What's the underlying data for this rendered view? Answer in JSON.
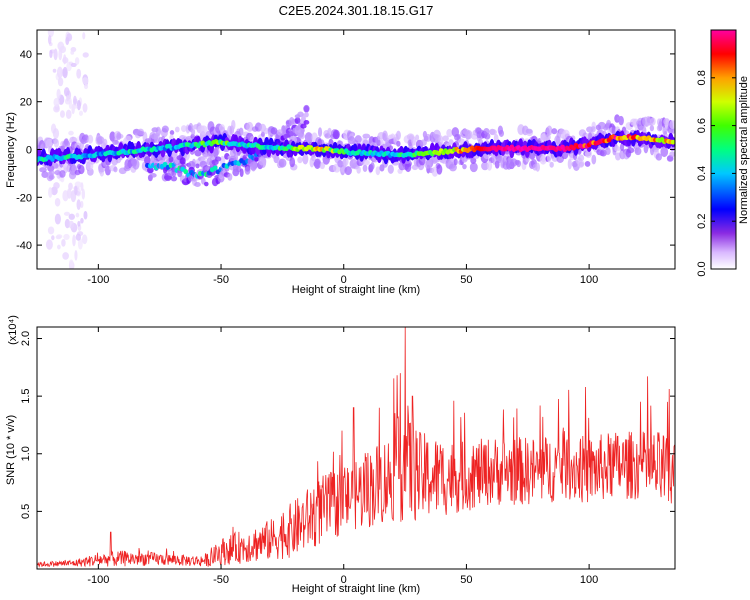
{
  "figure": {
    "title": "C2E5.2024.301.18.15.G17"
  },
  "colors": {
    "snr_line": "#ee2222",
    "axis": "#000000",
    "spectrogram_colormap": [
      "#ffffff",
      "#e9d6ff",
      "#b07cff",
      "#6a00ff",
      "#1a00ff",
      "#0066ff",
      "#00d0ff",
      "#00ff90",
      "#6aff00",
      "#d8ff00",
      "#ffd000",
      "#ff7a00",
      "#ff0000",
      "#ff0066",
      "#ff00cc"
    ]
  },
  "chart_data": [
    {
      "type": "heatmap",
      "name_key": "spectrogram",
      "xlabel": "Height of straight line (km)",
      "ylabel": "Frequency (Hz)",
      "xlim": [
        -125,
        135
      ],
      "ylim": [
        -50,
        50
      ],
      "xticks": [
        -100,
        -50,
        0,
        50,
        100
      ],
      "yticks": [
        -40,
        -20,
        0,
        20,
        40
      ],
      "colorbar": {
        "label": "Normalized spectral amplitude",
        "range": [
          0,
          1
        ],
        "ticks": [
          "0.0",
          "0.2",
          "0.4",
          "0.6",
          "0.8"
        ],
        "tick_values": [
          0,
          0.2,
          0.4,
          0.6,
          0.8
        ]
      },
      "ridge_main": {
        "x": [
          -125,
          -110,
          -100,
          -90,
          -80,
          -70,
          -60,
          -50,
          -40,
          -30,
          -20,
          -10,
          0,
          10,
          20,
          30,
          40,
          50,
          60,
          70,
          80,
          90,
          100,
          110,
          120,
          130,
          135
        ],
        "freq": [
          -4,
          -3,
          -2,
          -1,
          0,
          1,
          2,
          3,
          2,
          1,
          0.5,
          0.5,
          -1,
          -1.5,
          -2,
          -2,
          -1,
          0,
          0.5,
          0.5,
          0.5,
          0.5,
          2,
          5,
          5,
          4,
          3
        ],
        "amplitude": [
          0.45,
          0.45,
          0.4,
          0.45,
          0.45,
          0.4,
          0.5,
          0.55,
          0.45,
          0.45,
          0.6,
          0.7,
          0.5,
          0.45,
          0.45,
          0.5,
          0.55,
          0.75,
          0.95,
          0.97,
          0.96,
          0.95,
          0.8,
          0.85,
          0.75,
          0.7,
          0.65
        ]
      },
      "ridge_secondary": {
        "x": [
          -80,
          -70,
          -60,
          -50,
          -40,
          -30,
          -20,
          -15
        ],
        "freq": [
          -7,
          -7,
          -11,
          -8,
          -5,
          2,
          8,
          14
        ],
        "amplitude": [
          0.45,
          0.5,
          0.5,
          0.45,
          0.4,
          0.3,
          0.15,
          0.1
        ]
      },
      "noise_column": {
        "x_range": [
          -120,
          -105
        ],
        "freq_range": [
          -50,
          50
        ],
        "amplitude": 0.05
      }
    },
    {
      "type": "line",
      "name_key": "snr",
      "xlabel": "Height of straight line (km)",
      "ylabel": "SNR (10 * v/v)",
      "y_multiplier": "(x10⁴)",
      "xlim": [
        -125,
        135
      ],
      "ylim": [
        0,
        2.1
      ],
      "xticks": [
        -100,
        -50,
        0,
        50,
        100
      ],
      "yticks": [
        0.5,
        1.0,
        1.5,
        2.0
      ],
      "ytick_labels": [
        "0.5",
        "1.0",
        "1.5",
        "2.0"
      ],
      "envelope": {
        "x": [
          -125,
          -110,
          -100,
          -90,
          -80,
          -70,
          -60,
          -55,
          -50,
          -40,
          -30,
          -20,
          -10,
          0,
          10,
          20,
          25,
          30,
          40,
          50,
          60,
          70,
          80,
          90,
          100,
          110,
          120,
          130,
          135
        ],
        "mean": [
          0.04,
          0.05,
          0.08,
          0.09,
          0.09,
          0.08,
          0.07,
          0.08,
          0.15,
          0.2,
          0.25,
          0.35,
          0.5,
          0.6,
          0.7,
          0.8,
          0.95,
          0.8,
          0.8,
          0.8,
          0.85,
          0.85,
          0.85,
          0.9,
          0.85,
          0.9,
          0.9,
          0.85,
          0.8
        ],
        "spread": [
          0.02,
          0.03,
          0.06,
          0.07,
          0.06,
          0.05,
          0.05,
          0.06,
          0.12,
          0.15,
          0.18,
          0.25,
          0.3,
          0.3,
          0.35,
          0.4,
          0.55,
          0.4,
          0.35,
          0.3,
          0.3,
          0.3,
          0.3,
          0.3,
          0.3,
          0.3,
          0.3,
          0.35,
          0.35
        ]
      },
      "peaks": [
        {
          "x": -95,
          "y": 0.32
        },
        {
          "x": 25,
          "y": 2.1
        },
        {
          "x": 23,
          "y": 1.7
        },
        {
          "x": 28,
          "y": 1.5
        },
        {
          "x": 4,
          "y": 1.4
        },
        {
          "x": 132,
          "y": 1.45
        }
      ]
    }
  ]
}
